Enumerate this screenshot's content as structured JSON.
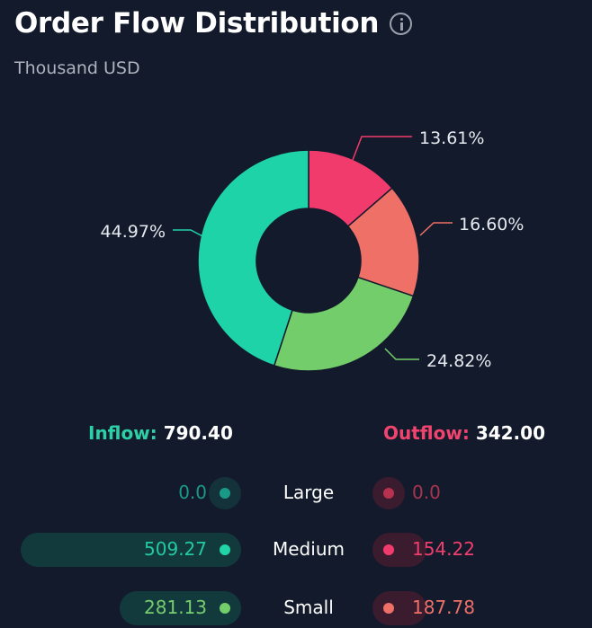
{
  "header": {
    "title": "Order Flow Distribution",
    "info_icon": "info-icon",
    "subtitle": "Thousand USD"
  },
  "chart_data": {
    "type": "pie",
    "variant": "donut",
    "slices": [
      {
        "label": "13.61%",
        "value": 13.61,
        "color": "#f23b6d"
      },
      {
        "label": "16.60%",
        "value": 16.6,
        "color": "#ee7067"
      },
      {
        "label": "24.82%",
        "value": 24.82,
        "color": "#74cd6b"
      },
      {
        "label": "44.97%",
        "value": 44.97,
        "color": "#1fd3a8"
      }
    ]
  },
  "totals": {
    "inflow_label": "Inflow:",
    "inflow_value": "790.40",
    "outflow_label": "Outflow:",
    "outflow_value": "342.00"
  },
  "rows": [
    {
      "category": "Large",
      "inflow": "0.0",
      "outflow": "0.0",
      "inflow_share": 0.0,
      "outflow_share": 0.0,
      "in_color": "#1a9a86",
      "out_color": "#b8324f",
      "in_text": "#1a9a86",
      "out_text": "#a8354f"
    },
    {
      "category": "Medium",
      "inflow": "509.27",
      "outflow": "154.22",
      "inflow_share": 1.0,
      "outflow_share": 0.3,
      "in_color": "#22d3a8",
      "out_color": "#f23b6d",
      "in_text": "#22c9a2",
      "out_text": "#f03f6e"
    },
    {
      "category": "Small",
      "inflow": "281.13",
      "outflow": "187.78",
      "inflow_share": 0.55,
      "outflow_share": 0.37,
      "in_color": "#74cd6b",
      "out_color": "#ee7067",
      "in_text": "#78cd6e",
      "out_text": "#ee7067"
    }
  ]
}
